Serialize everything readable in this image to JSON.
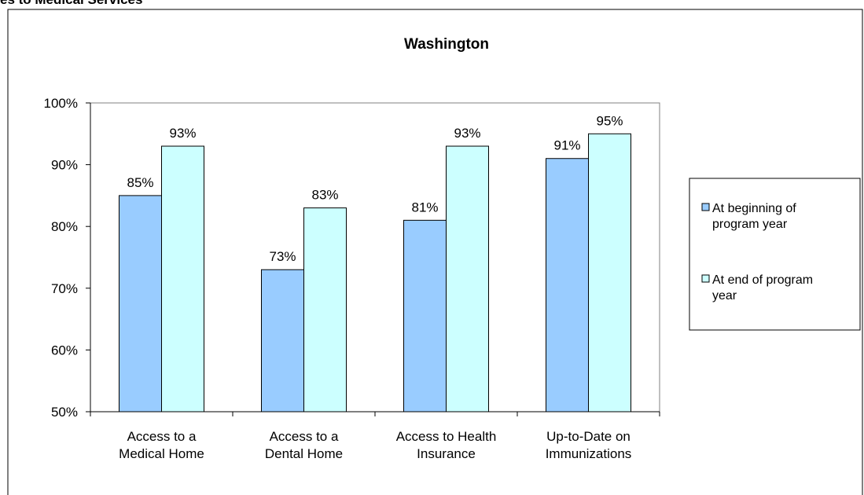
{
  "page": {
    "heading": "es to Medical Services"
  },
  "chart_data": {
    "type": "bar",
    "title": "Washington",
    "categories": [
      [
        "Access to a",
        "Medical Home"
      ],
      [
        "Access to a",
        "Dental Home"
      ],
      [
        "Access to Health",
        "Insurance"
      ],
      [
        "Up-to-Date on",
        "Immunizations"
      ]
    ],
    "series": [
      {
        "name": "At beginning of program year",
        "legend_lines": [
          "At beginning of",
          "program year"
        ],
        "color": "#99ccff",
        "values": [
          85,
          73,
          81,
          91
        ],
        "labels": [
          "85%",
          "73%",
          "81%",
          "91%"
        ]
      },
      {
        "name": "At end of program year",
        "legend_lines": [
          "At end of program",
          "year"
        ],
        "color": "#ccffff",
        "values": [
          93,
          83,
          93,
          95
        ],
        "labels": [
          "93%",
          "83%",
          "93%",
          "95%"
        ]
      }
    ],
    "ylim": [
      50,
      100
    ],
    "yticks": [
      50,
      60,
      70,
      80,
      90,
      100
    ],
    "ytick_labels": [
      "50%",
      "60%",
      "70%",
      "80%",
      "90%",
      "100%"
    ],
    "xlabel": "",
    "ylabel": "",
    "grid": false,
    "legend_position": "right",
    "plot_background": "#ffffff"
  }
}
